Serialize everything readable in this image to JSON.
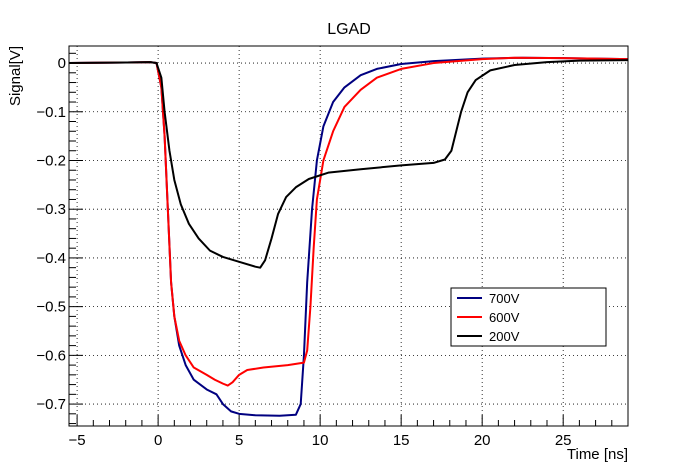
{
  "chart_data": {
    "type": "line",
    "title": "LGAD",
    "xlabel": "Time [ns]",
    "ylabel": "Signal[V]",
    "xlim": [
      -5.5,
      29
    ],
    "ylim": [
      -0.745,
      0.035
    ],
    "x_ticks": [
      -5,
      0,
      5,
      10,
      15,
      20,
      25
    ],
    "y_ticks": [
      0,
      -0.1,
      -0.2,
      -0.3,
      -0.4,
      -0.5,
      -0.6,
      -0.7
    ],
    "x_tick_labels": [
      "−5",
      "0",
      "5",
      "10",
      "15",
      "20",
      "25"
    ],
    "y_tick_labels": [
      "0",
      "−0.1",
      "−0.2",
      "−0.3",
      "−0.4",
      "−0.5",
      "−0.6",
      "−0.7"
    ],
    "grid": true,
    "legend_position": "lower-right",
    "series": [
      {
        "name": "700V",
        "color": "#000080",
        "points": [
          [
            -5.5,
            0.0
          ],
          [
            -2,
            0.001
          ],
          [
            -0.5,
            0.002
          ],
          [
            -0.1,
            0.0
          ],
          [
            0.2,
            -0.05
          ],
          [
            0.4,
            -0.15
          ],
          [
            0.6,
            -0.3
          ],
          [
            0.8,
            -0.45
          ],
          [
            1.0,
            -0.52
          ],
          [
            1.3,
            -0.58
          ],
          [
            1.7,
            -0.62
          ],
          [
            2.2,
            -0.65
          ],
          [
            3.0,
            -0.67
          ],
          [
            3.6,
            -0.68
          ],
          [
            4.0,
            -0.7
          ],
          [
            4.5,
            -0.715
          ],
          [
            5.0,
            -0.72
          ],
          [
            6.0,
            -0.723
          ],
          [
            7.5,
            -0.724
          ],
          [
            8.5,
            -0.722
          ],
          [
            8.8,
            -0.7
          ],
          [
            9.0,
            -0.6
          ],
          [
            9.2,
            -0.45
          ],
          [
            9.5,
            -0.3
          ],
          [
            9.8,
            -0.2
          ],
          [
            10.2,
            -0.13
          ],
          [
            10.8,
            -0.08
          ],
          [
            11.5,
            -0.05
          ],
          [
            12.5,
            -0.025
          ],
          [
            13.5,
            -0.012
          ],
          [
            15.0,
            -0.002
          ],
          [
            17.0,
            0.004
          ],
          [
            20.0,
            0.009
          ],
          [
            22.5,
            0.011
          ],
          [
            25.0,
            0.01
          ],
          [
            27.0,
            0.009
          ],
          [
            29.0,
            0.008
          ]
        ]
      },
      {
        "name": "600V",
        "color": "#ff0000",
        "points": [
          [
            -5.5,
            0.0
          ],
          [
            -2,
            0.001
          ],
          [
            -0.5,
            0.002
          ],
          [
            -0.1,
            0.0
          ],
          [
            0.2,
            -0.05
          ],
          [
            0.4,
            -0.15
          ],
          [
            0.6,
            -0.3
          ],
          [
            0.8,
            -0.45
          ],
          [
            1.0,
            -0.52
          ],
          [
            1.3,
            -0.57
          ],
          [
            1.7,
            -0.6
          ],
          [
            2.2,
            -0.625
          ],
          [
            3.0,
            -0.64
          ],
          [
            3.5,
            -0.65
          ],
          [
            4.0,
            -0.658
          ],
          [
            4.3,
            -0.662
          ],
          [
            4.6,
            -0.655
          ],
          [
            5.0,
            -0.64
          ],
          [
            5.5,
            -0.63
          ],
          [
            6.5,
            -0.625
          ],
          [
            8.0,
            -0.62
          ],
          [
            9.0,
            -0.615
          ],
          [
            9.2,
            -0.59
          ],
          [
            9.4,
            -0.5
          ],
          [
            9.6,
            -0.38
          ],
          [
            9.8,
            -0.28
          ],
          [
            10.2,
            -0.2
          ],
          [
            10.8,
            -0.14
          ],
          [
            11.5,
            -0.09
          ],
          [
            12.5,
            -0.055
          ],
          [
            13.5,
            -0.03
          ],
          [
            15.0,
            -0.012
          ],
          [
            17.0,
            0.0
          ],
          [
            20.0,
            0.008
          ],
          [
            22.0,
            0.011
          ],
          [
            25.0,
            0.01
          ],
          [
            27.0,
            0.009
          ],
          [
            29.0,
            0.008
          ]
        ]
      },
      {
        "name": "200V",
        "color": "#000000",
        "points": [
          [
            -5.5,
            0.0
          ],
          [
            -2,
            0.001
          ],
          [
            -0.5,
            0.002
          ],
          [
            -0.1,
            0.0
          ],
          [
            0.2,
            -0.03
          ],
          [
            0.4,
            -0.1
          ],
          [
            0.7,
            -0.18
          ],
          [
            1.0,
            -0.24
          ],
          [
            1.4,
            -0.29
          ],
          [
            1.9,
            -0.33
          ],
          [
            2.5,
            -0.36
          ],
          [
            3.2,
            -0.385
          ],
          [
            4.0,
            -0.398
          ],
          [
            5.0,
            -0.408
          ],
          [
            6.0,
            -0.418
          ],
          [
            6.3,
            -0.42
          ],
          [
            6.6,
            -0.405
          ],
          [
            7.0,
            -0.36
          ],
          [
            7.4,
            -0.31
          ],
          [
            7.9,
            -0.275
          ],
          [
            8.5,
            -0.255
          ],
          [
            9.3,
            -0.238
          ],
          [
            10.5,
            -0.225
          ],
          [
            12.5,
            -0.218
          ],
          [
            15.0,
            -0.21
          ],
          [
            17.0,
            -0.205
          ],
          [
            17.7,
            -0.198
          ],
          [
            18.1,
            -0.18
          ],
          [
            18.4,
            -0.14
          ],
          [
            18.7,
            -0.1
          ],
          [
            19.1,
            -0.06
          ],
          [
            19.6,
            -0.035
          ],
          [
            20.5,
            -0.015
          ],
          [
            22.0,
            -0.004
          ],
          [
            24.0,
            0.002
          ],
          [
            26.0,
            0.005
          ],
          [
            29.0,
            0.006
          ]
        ]
      }
    ]
  }
}
